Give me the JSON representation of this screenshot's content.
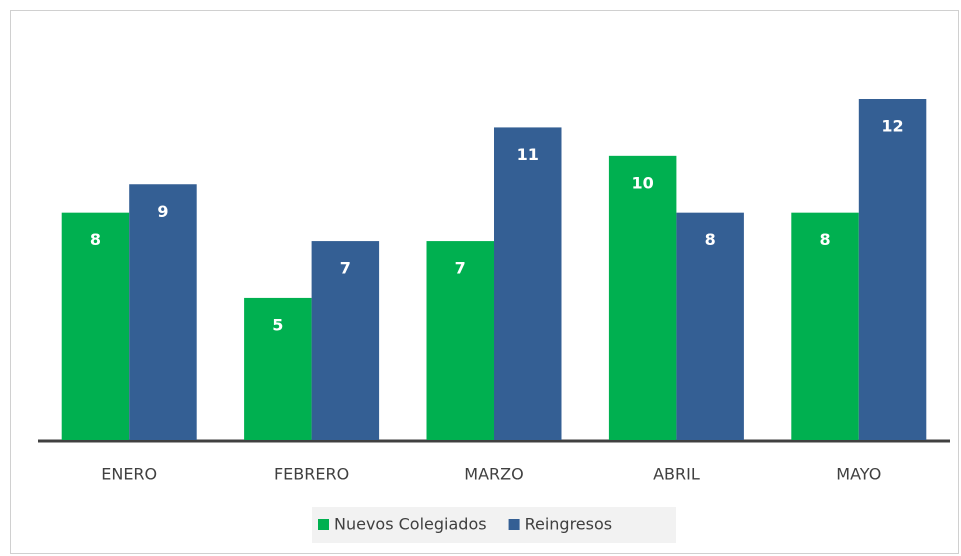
{
  "chart_data": {
    "type": "bar",
    "categories": [
      "ENERO",
      "FEBRERO",
      "MARZO",
      "ABRIL",
      "MAYO"
    ],
    "series": [
      {
        "name": "Nuevos Colegiados",
        "color": "#00b050",
        "values": [
          8,
          5,
          7,
          10,
          8
        ]
      },
      {
        "name": "Reingresos",
        "color": "#345f94",
        "values": [
          9,
          7,
          11,
          8,
          12
        ]
      }
    ],
    "legend": "bottom"
  }
}
